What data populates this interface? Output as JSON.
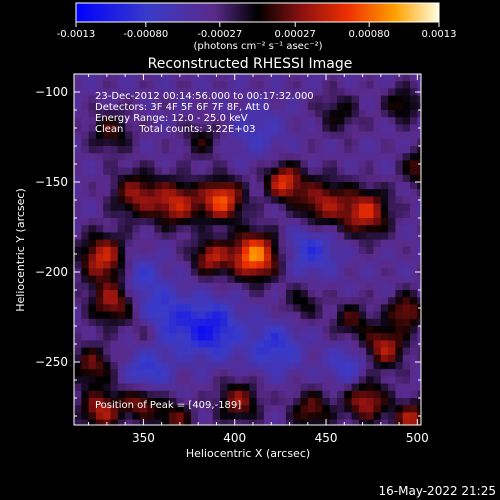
{
  "chart_data": {
    "type": "heatmap",
    "title": "Reconstructed RHESSI Image",
    "xlabel": "Heliocentric X (arcsec)",
    "ylabel": "Heliocentric Y (arcsec)",
    "xlim": [
      312,
      502
    ],
    "ylim": [
      -285,
      -90
    ],
    "xticks": [
      350,
      400,
      450,
      500
    ],
    "yticks": [
      -100,
      -150,
      -200,
      -250
    ],
    "colorbar": {
      "ticks": [
        "-0.0013",
        "-0.00080",
        "-0.00027",
        "0.00027",
        "0.00080",
        "0.0013"
      ],
      "tick_values": [
        -0.0013,
        -0.0008,
        -0.00027,
        0.00027,
        0.0008,
        0.0013
      ],
      "range": [
        -0.0013,
        0.0013
      ],
      "label": "(photons cm⁻² s⁻¹ asec⁻²)"
    },
    "annotations": [
      "23-Dec-2012 00:14:56.000 to 00:17:32.000",
      "Detectors: 3F 4F 5F 6F 7F 8F, Att 0",
      "Energy Range: 12.0 - 25.0 keV",
      "Clean     Total counts: 3.22E+03"
    ],
    "peak_text": "Position of Peak = [409,-189]",
    "peak": [
      409,
      -189
    ],
    "sources": [
      {
        "x": 409,
        "y": -189,
        "amp": 0.0013,
        "s": 9
      },
      {
        "x": 391,
        "y": -158,
        "amp": 0.0011,
        "s": 8
      },
      {
        "x": 366,
        "y": -160,
        "amp": 0.00085,
        "s": 9
      },
      {
        "x": 344,
        "y": -155,
        "amp": 0.0007,
        "s": 9
      },
      {
        "x": 425,
        "y": -148,
        "amp": 0.00095,
        "s": 7
      },
      {
        "x": 446,
        "y": -160,
        "amp": 0.00075,
        "s": 10
      },
      {
        "x": 470,
        "y": -165,
        "amp": 0.0009,
        "s": 9
      },
      {
        "x": 385,
        "y": -190,
        "amp": 0.0008,
        "s": 7
      },
      {
        "x": 326,
        "y": -190,
        "amp": 0.0009,
        "s": 9
      },
      {
        "x": 332,
        "y": -215,
        "amp": 0.0008,
        "s": 9
      },
      {
        "x": 350,
        "y": -230,
        "amp": 0.0006,
        "s": 8
      },
      {
        "x": 320,
        "y": -250,
        "amp": 0.0006,
        "s": 8
      },
      {
        "x": 325,
        "y": -275,
        "amp": 0.0008,
        "s": 8
      },
      {
        "x": 347,
        "y": -270,
        "amp": 0.0007,
        "s": 7
      },
      {
        "x": 365,
        "y": -280,
        "amp": 0.0006,
        "s": 7
      },
      {
        "x": 400,
        "y": -270,
        "amp": 0.0007,
        "s": 8
      },
      {
        "x": 440,
        "y": -275,
        "amp": 0.0006,
        "s": 8
      },
      {
        "x": 470,
        "y": -270,
        "amp": 0.0008,
        "s": 8
      },
      {
        "x": 495,
        "y": -280,
        "amp": 0.0008,
        "s": 7
      },
      {
        "x": 480,
        "y": -240,
        "amp": 0.0008,
        "s": 8
      },
      {
        "x": 492,
        "y": -220,
        "amp": 0.0007,
        "s": 7
      },
      {
        "x": 462,
        "y": -225,
        "amp": 0.0005,
        "s": 7
      },
      {
        "x": 435,
        "y": -215,
        "amp": 0.0004,
        "s": 7
      },
      {
        "x": 500,
        "y": -140,
        "amp": 0.0006,
        "s": 7
      },
      {
        "x": 330,
        "y": -120,
        "amp": 0.0005,
        "s": 8
      },
      {
        "x": 380,
        "y": -125,
        "amp": 0.0004,
        "s": 7
      },
      {
        "x": 455,
        "y": -110,
        "amp": 0.0004,
        "s": 8
      },
      {
        "x": 490,
        "y": -105,
        "amp": 0.0005,
        "s": 7
      },
      {
        "x": 355,
        "y": -225,
        "amp": -0.0007,
        "s": 12
      },
      {
        "x": 385,
        "y": -230,
        "amp": -0.0007,
        "s": 11
      },
      {
        "x": 350,
        "y": -255,
        "amp": -0.0005,
        "s": 8
      },
      {
        "x": 440,
        "y": -185,
        "amp": -0.0005,
        "s": 10
      },
      {
        "x": 420,
        "y": -240,
        "amp": -0.0005,
        "s": 10
      },
      {
        "x": 345,
        "y": -200,
        "amp": -0.0004,
        "s": 8
      },
      {
        "x": 410,
        "y": -120,
        "amp": -0.0003,
        "s": 10
      },
      {
        "x": 460,
        "y": -250,
        "amp": -0.0004,
        "s": 8
      }
    ]
  },
  "footer": {
    "timestamp": "16-May-2022 21:25"
  }
}
